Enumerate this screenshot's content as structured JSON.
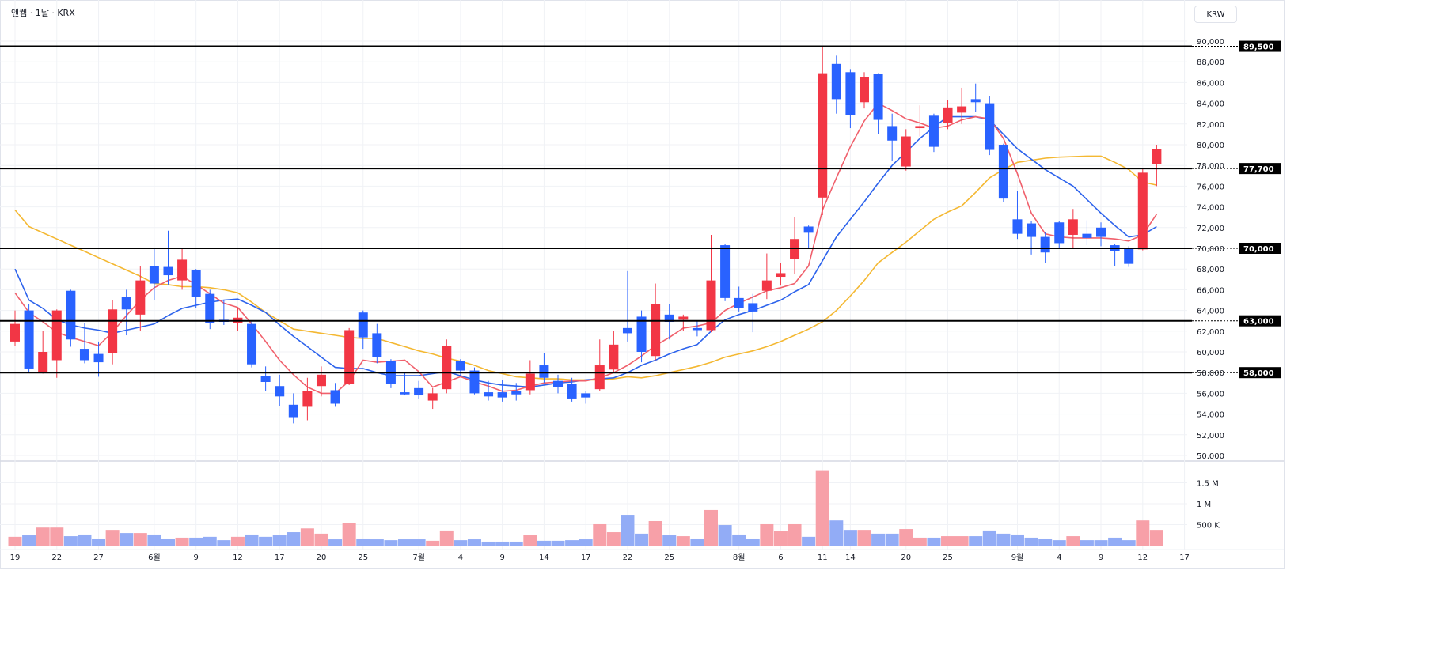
{
  "header": {
    "title": "엔켐 · 1날 · KRX",
    "currency_button": "KRW"
  },
  "colors": {
    "up": "#f23645",
    "down": "#2962ff",
    "vol_up": "#f7a0a8",
    "vol_down": "#92acf6",
    "ma_short": "#f0606c",
    "ma_mid": "#2d63ec",
    "ma_long": "#f4b832",
    "level_line": "#000000"
  },
  "chart_data": [
    {
      "type": "candlestick",
      "title": "",
      "ylim": [
        50000,
        90000
      ],
      "y_ticks": [
        "50,000",
        "52,000",
        "54,000",
        "56,000",
        "58,000",
        "60,000",
        "62,000",
        "64,000",
        "66,000",
        "68,000",
        "70,000",
        "72,000",
        "74,000",
        "76,000",
        "78,000",
        "80,000",
        "82,000",
        "84,000",
        "86,000",
        "88,000",
        "90,000"
      ],
      "x_ticks": [
        {
          "i": 0,
          "label": "19"
        },
        {
          "i": 3,
          "label": "22"
        },
        {
          "i": 6,
          "label": "27"
        },
        {
          "i": 10,
          "label": "6월"
        },
        {
          "i": 13,
          "label": "9"
        },
        {
          "i": 16,
          "label": "12"
        },
        {
          "i": 19,
          "label": "17"
        },
        {
          "i": 22,
          "label": "20"
        },
        {
          "i": 25,
          "label": "25"
        },
        {
          "i": 29,
          "label": "7월"
        },
        {
          "i": 32,
          "label": "4"
        },
        {
          "i": 35,
          "label": "9"
        },
        {
          "i": 38,
          "label": "14"
        },
        {
          "i": 41,
          "label": "17"
        },
        {
          "i": 44,
          "label": "22"
        },
        {
          "i": 47,
          "label": "25"
        },
        {
          "i": 52,
          "label": "8월"
        },
        {
          "i": 55,
          "label": "6"
        },
        {
          "i": 58,
          "label": "11"
        },
        {
          "i": 60,
          "label": "14"
        },
        {
          "i": 64,
          "label": "20"
        },
        {
          "i": 67,
          "label": "25"
        },
        {
          "i": 72,
          "label": "9월"
        },
        {
          "i": 75,
          "label": "4"
        },
        {
          "i": 78,
          "label": "9"
        },
        {
          "i": 81,
          "label": "12"
        },
        {
          "i": 84,
          "label": "17"
        }
      ],
      "levels": [
        {
          "value": 89500,
          "label": "89,500"
        },
        {
          "value": 77700,
          "label": "77,700"
        },
        {
          "value": 70000,
          "label": "70,000"
        },
        {
          "value": 63000,
          "label": "63,000"
        },
        {
          "value": 58000,
          "label": "58,000"
        }
      ],
      "ohlc": [
        [
          61000,
          64000,
          60600,
          62700
        ],
        [
          64000,
          64600,
          58000,
          58400
        ],
        [
          58000,
          62000,
          57900,
          60000
        ],
        [
          59200,
          64100,
          57500,
          64000
        ],
        [
          65900,
          66000,
          60500,
          61200
        ],
        [
          60300,
          62800,
          58900,
          59200
        ],
        [
          59800,
          61000,
          57600,
          59000
        ],
        [
          59900,
          65000,
          58800,
          64100
        ],
        [
          65300,
          66000,
          61600,
          64100
        ],
        [
          63600,
          68300,
          62000,
          66900
        ],
        [
          68300,
          70000,
          65000,
          66600
        ],
        [
          68200,
          71700,
          66500,
          67400
        ],
        [
          66900,
          70000,
          66000,
          68900
        ],
        [
          67900,
          68000,
          64200,
          65300
        ],
        [
          65600,
          66000,
          62200,
          62800
        ],
        [
          63100,
          65000,
          62600,
          62900
        ],
        [
          62800,
          64200,
          62000,
          63300
        ],
        [
          62700,
          63000,
          58500,
          58800
        ],
        [
          57700,
          58600,
          56200,
          57100
        ],
        [
          56700,
          57800,
          54800,
          55700
        ],
        [
          54900,
          56000,
          53100,
          53700
        ],
        [
          54700,
          57500,
          53400,
          56200
        ],
        [
          56700,
          58600,
          55700,
          57800
        ],
        [
          56300,
          57000,
          54700,
          55000
        ],
        [
          56900,
          62300,
          56800,
          62100
        ],
        [
          63800,
          64000,
          60300,
          61400
        ],
        [
          61800,
          62700,
          58900,
          59500
        ],
        [
          59100,
          59300,
          56500,
          56900
        ],
        [
          56100,
          58000,
          55800,
          55900
        ],
        [
          56500,
          57200,
          55500,
          55800
        ],
        [
          55300,
          56500,
          54500,
          56000
        ],
        [
          56400,
          61200,
          56000,
          60600
        ],
        [
          59100,
          59300,
          57700,
          58200
        ],
        [
          58200,
          58500,
          55900,
          56000
        ],
        [
          56100,
          57200,
          55300,
          55700
        ],
        [
          56100,
          57300,
          55200,
          55600
        ],
        [
          56200,
          57000,
          55300,
          55900
        ],
        [
          56300,
          59200,
          55900,
          57900
        ],
        [
          58700,
          59900,
          57000,
          57500
        ],
        [
          57200,
          57800,
          56000,
          56600
        ],
        [
          56900,
          57500,
          55200,
          55500
        ],
        [
          56000,
          56200,
          55000,
          55600
        ],
        [
          56400,
          61200,
          56200,
          58700
        ],
        [
          58300,
          62000,
          58000,
          60700
        ],
        [
          62300,
          67800,
          61000,
          61800
        ],
        [
          63400,
          64000,
          59000,
          60000
        ],
        [
          59600,
          66600,
          59200,
          64600
        ],
        [
          63600,
          64600,
          61200,
          62900
        ],
        [
          63100,
          63600,
          62000,
          63400
        ],
        [
          62300,
          63000,
          61500,
          62100
        ],
        [
          62100,
          71300,
          61900,
          66900
        ],
        [
          70300,
          70400,
          64900,
          65200
        ],
        [
          65200,
          66300,
          63900,
          64200
        ],
        [
          64700,
          65600,
          61900,
          63900
        ],
        [
          65900,
          69500,
          65100,
          66900
        ],
        [
          67250,
          68600,
          66400,
          67600
        ],
        [
          69000,
          73000,
          67500,
          70900
        ],
        [
          72100,
          72200,
          70000,
          71500
        ],
        [
          74900,
          89500,
          73200,
          86900
        ],
        [
          87800,
          88600,
          83000,
          84400
        ],
        [
          87000,
          87300,
          81600,
          82900
        ],
        [
          84100,
          87000,
          83500,
          86500
        ],
        [
          86800,
          86900,
          81000,
          82400
        ],
        [
          81800,
          83000,
          78400,
          80400
        ],
        [
          77900,
          81500,
          77500,
          80800
        ],
        [
          81600,
          83800,
          80800,
          81800
        ],
        [
          82800,
          83000,
          79300,
          79800
        ],
        [
          82100,
          84300,
          81500,
          83600
        ],
        [
          83100,
          85500,
          82000,
          83700
        ],
        [
          84400,
          85900,
          83200,
          84100
        ],
        [
          84000,
          84700,
          79000,
          79500
        ],
        [
          80000,
          80100,
          74500,
          74800
        ],
        [
          72800,
          75500,
          70900,
          71400
        ],
        [
          72400,
          72600,
          69400,
          71100
        ],
        [
          71100,
          71600,
          68600,
          69600
        ],
        [
          72500,
          72600,
          70000,
          70500
        ],
        [
          71300,
          73800,
          70000,
          72800
        ],
        [
          71400,
          72700,
          70300,
          71000
        ],
        [
          72000,
          72500,
          70200,
          71100
        ],
        [
          70300,
          70400,
          68300,
          69700
        ],
        [
          70000,
          70200,
          68200,
          68500
        ],
        [
          69900,
          77700,
          69800,
          77300
        ],
        [
          78100,
          80000,
          76000,
          79600
        ]
      ],
      "ma_short": [
        65700,
        63800,
        62900,
        61900,
        61400,
        61000,
        60600,
        61900,
        63500,
        65000,
        66200,
        66900,
        67300,
        66500,
        65600,
        64700,
        64300,
        62700,
        61000,
        59200,
        57800,
        56600,
        56000,
        56000,
        57200,
        59200,
        59000,
        59100,
        59200,
        58100,
        56600,
        57100,
        57600,
        57100,
        56700,
        56200,
        56300,
        56700,
        57000,
        57100,
        57200,
        57200,
        57500,
        58000,
        58700,
        59600,
        60600,
        61400,
        62300,
        62500,
        62800,
        64000,
        64700,
        65300,
        65900,
        66200,
        66600,
        68300,
        73700,
        76800,
        79800,
        82300,
        84000,
        83300,
        82500,
        82100,
        81600,
        81800,
        82400,
        82700,
        82500,
        80600,
        77200,
        73400,
        71400,
        71100,
        71000,
        71000,
        71000,
        70900,
        70700,
        71300,
        73300
      ],
      "ma_mid": [
        68000,
        65000,
        64200,
        63100,
        62600,
        62300,
        62100,
        61800,
        62100,
        62400,
        62700,
        63500,
        64200,
        64500,
        64800,
        65000,
        65100,
        64500,
        63800,
        62600,
        61500,
        60500,
        59500,
        58500,
        58400,
        58400,
        58000,
        57700,
        57700,
        57700,
        57900,
        58100,
        57700,
        57300,
        57000,
        56800,
        56700,
        56600,
        56800,
        57000,
        57100,
        57300,
        57400,
        57500,
        58000,
        58700,
        59200,
        59800,
        60300,
        60700,
        62000,
        63100,
        63600,
        64000,
        64500,
        65000,
        65800,
        66500,
        68800,
        71100,
        72800,
        74500,
        76300,
        78000,
        79300,
        80600,
        81700,
        82700,
        82700,
        82700,
        82400,
        81000,
        79600,
        78600,
        77600,
        76800,
        76000,
        74700,
        73400,
        72200,
        71100,
        71300,
        72100
      ],
      "ma_long": [
        73700,
        72100,
        71500,
        70900,
        70300,
        69700,
        69100,
        68500,
        67900,
        67300,
        66600,
        66500,
        66300,
        66300,
        66200,
        66000,
        65700,
        64800,
        63800,
        63000,
        62200,
        62000,
        61800,
        61600,
        61400,
        61300,
        61300,
        60900,
        60500,
        60100,
        59800,
        59400,
        59100,
        58700,
        58200,
        57900,
        57600,
        57500,
        57400,
        57400,
        57300,
        57300,
        57300,
        57400,
        57600,
        57500,
        57700,
        58000,
        58300,
        58600,
        59000,
        59500,
        59800,
        60100,
        60500,
        61000,
        61600,
        62200,
        62900,
        64000,
        65400,
        66900,
        68600,
        69600,
        70600,
        71700,
        72800,
        73500,
        74100,
        75400,
        76800,
        77600,
        78300,
        78500,
        78700,
        78800,
        78850,
        78900,
        78900,
        78300,
        77600,
        76400,
        76100
      ]
    },
    {
      "type": "bar",
      "title": "",
      "ylim": [
        0,
        1900000
      ],
      "y_ticks": [
        {
          "value": 500000,
          "label": "500 K"
        },
        {
          "value": 1000000,
          "label": "1 M"
        },
        {
          "value": 1500000,
          "label": "1.5 M"
        }
      ],
      "values": [
        210000,
        245000,
        430000,
        430000,
        225000,
        265000,
        170000,
        375000,
        300000,
        300000,
        265000,
        170000,
        190000,
        190000,
        210000,
        130000,
        210000,
        265000,
        210000,
        245000,
        320000,
        410000,
        285000,
        150000,
        530000,
        170000,
        150000,
        130000,
        150000,
        150000,
        115000,
        360000,
        130000,
        150000,
        95000,
        95000,
        95000,
        245000,
        115000,
        115000,
        130000,
        150000,
        510000,
        320000,
        735000,
        285000,
        585000,
        245000,
        225000,
        170000,
        850000,
        490000,
        265000,
        170000,
        510000,
        340000,
        510000,
        210000,
        1800000,
        600000,
        375000,
        375000,
        285000,
        285000,
        395000,
        190000,
        190000,
        225000,
        225000,
        225000,
        360000,
        285000,
        265000,
        190000,
        170000,
        130000,
        225000,
        130000,
        130000,
        190000,
        130000,
        600000,
        375000
      ]
    }
  ]
}
